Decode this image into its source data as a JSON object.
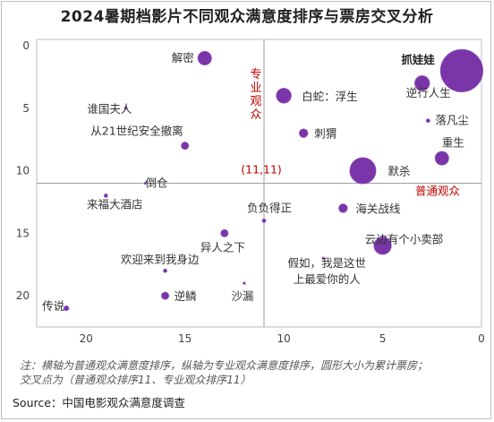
{
  "title": "2024暑期档影片不同观众满意度排序与票房交叉分析",
  "note_line1": "注：横轴为普通观众满意度排序，纵轴为专业观众满意度排序，圆形大小为累计票房；",
  "note_line2": "交叉点为（普通观众排序11、专业观众排序11）",
  "source": "Source：中国电影观众满意度调查",
  "colors": {
    "bubble": "#7a35a8",
    "axis_label": "#c00000",
    "frame": "#bdbdbd"
  },
  "chart_data": {
    "type": "scatter",
    "x_axis": {
      "reversed": true,
      "range": [
        22.5,
        0
      ],
      "ticks": [
        0,
        5,
        10,
        15,
        20
      ]
    },
    "y_axis": {
      "reversed": true,
      "range": [
        -0.5,
        22.5
      ],
      "ticks": [
        0,
        5,
        10,
        15,
        20
      ]
    },
    "crosshair": {
      "x": 11,
      "y": 11,
      "label": "(11,11)"
    },
    "x_axis_title": "普通观众",
    "y_axis_title": "专业观众",
    "points": [
      {
        "name": "抓娃娃",
        "x": 1,
        "y": 2,
        "size": 34,
        "bold": true
      },
      {
        "name": "解密",
        "x": 14,
        "y": 1,
        "size": 11
      },
      {
        "name": "白蛇：浮生",
        "x": 10,
        "y": 4,
        "size": 12
      },
      {
        "name": "逆行人生",
        "x": 3,
        "y": 3,
        "size": 12
      },
      {
        "name": "谁国夫人",
        "x": 18,
        "y": 5,
        "size": 2
      },
      {
        "name": "落凡尘",
        "x": 2.7,
        "y": 6,
        "size": 3
      },
      {
        "name": "从21世纪安全撤离",
        "x": 15,
        "y": 8,
        "size": 6
      },
      {
        "name": "刺猬",
        "x": 9,
        "y": 7,
        "size": 7
      },
      {
        "name": "重生",
        "x": 2,
        "y": 9,
        "size": 11
      },
      {
        "name": "默杀",
        "x": 6,
        "y": 10,
        "size": 21
      },
      {
        "name": "倒仓",
        "x": 17,
        "y": 11,
        "size": 1.5
      },
      {
        "name": "来福大酒店",
        "x": 19,
        "y": 12,
        "size": 3
      },
      {
        "name": "负负得正",
        "x": 11,
        "y": 14,
        "size": 3
      },
      {
        "name": "海关战线",
        "x": 7,
        "y": 13,
        "size": 7
      },
      {
        "name": "异人之下",
        "x": 13,
        "y": 15,
        "size": 6
      },
      {
        "name": "云边有个小卖部",
        "x": 5,
        "y": 16,
        "size": 14
      },
      {
        "name": "欢迎来到我身边",
        "x": 16,
        "y": 18,
        "size": 3
      },
      {
        "name": "假如，我是这世",
        "x": 8,
        "y": 17,
        "size": 1.5
      },
      {
        "name": "上最爱你的人",
        "x": null,
        "y": null,
        "size": 0
      },
      {
        "name": "沙漏",
        "x": 12,
        "y": 19,
        "size": 2
      },
      {
        "name": "逆鳞",
        "x": 16,
        "y": 20,
        "size": 6
      },
      {
        "name": "传说",
        "x": 21,
        "y": 21,
        "size": 4
      }
    ]
  }
}
